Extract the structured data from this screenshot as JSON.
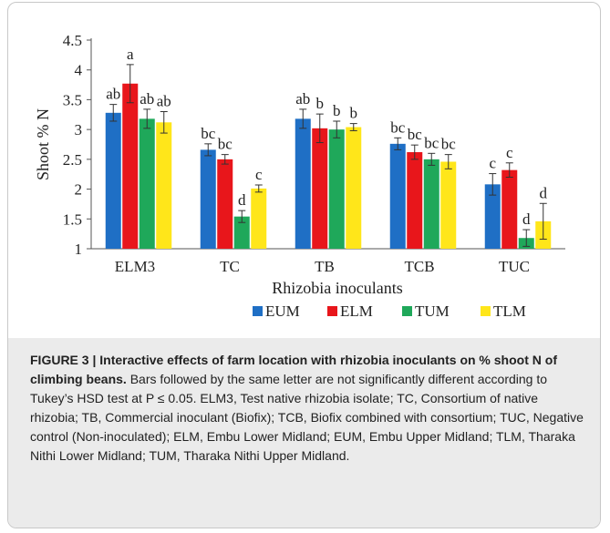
{
  "chart_data": {
    "type": "bar",
    "xlabel": "Rhizobia inoculants",
    "ylabel": "Shoot % N",
    "ylim": [
      1,
      4.5
    ],
    "yticks": [
      "4.5",
      "4",
      "3.5",
      "3",
      "2.5",
      "2",
      "1.5",
      "1"
    ],
    "categories": [
      "ELM3",
      "TC",
      "TB",
      "TCB",
      "TUC"
    ],
    "legend_position": "bottom-center",
    "grid": false,
    "series": [
      {
        "name": "EUM",
        "color": "#1f6fc5",
        "values": [
          3.28,
          2.66,
          3.18,
          2.76,
          2.08
        ],
        "errors": [
          0.14,
          0.1,
          0.16,
          0.1,
          0.18
        ],
        "letters": [
          "ab",
          "bc",
          "ab",
          "bc",
          "c"
        ]
      },
      {
        "name": "ELM",
        "color": "#e8161b",
        "values": [
          3.77,
          2.5,
          3.02,
          2.62,
          2.32
        ],
        "errors": [
          0.32,
          0.08,
          0.24,
          0.12,
          0.12
        ],
        "letters": [
          "a",
          "bc",
          "b",
          "bc",
          "c"
        ]
      },
      {
        "name": "TUM",
        "color": "#1fa85a",
        "values": [
          3.18,
          1.54,
          3.0,
          2.5,
          1.18
        ],
        "errors": [
          0.16,
          0.1,
          0.14,
          0.1,
          0.14
        ],
        "letters": [
          "ab",
          "d",
          "b",
          "bc",
          "d"
        ]
      },
      {
        "name": "TLM",
        "color": "#ffe61a",
        "values": [
          3.12,
          2.01,
          3.04,
          2.46,
          1.46
        ],
        "errors": [
          0.18,
          0.06,
          0.06,
          0.12,
          0.3
        ],
        "letters": [
          "ab",
          "c",
          "b",
          "bc",
          "d"
        ]
      }
    ]
  },
  "caption": {
    "bold": "FIGURE 3 | Interactive effects of farm location with rhizobia inoculants on % shoot N of climbing beans.",
    "text": " Bars followed by the same letter are not significantly different according to Tukey’s HSD test at P ≤ 0.05. ELM3, Test native rhizobia isolate; TC, Consortium of native rhizobia; TB, Commercial inoculant (Biofix); TCB, Biofix combined with consortium; TUC, Negative control (Non-inoculated); ELM, Embu Lower Midland; EUM, Embu Upper Midland; TLM, Tharaka Nithi Lower Midland; TUM, Tharaka Nithi Upper Midland."
  }
}
